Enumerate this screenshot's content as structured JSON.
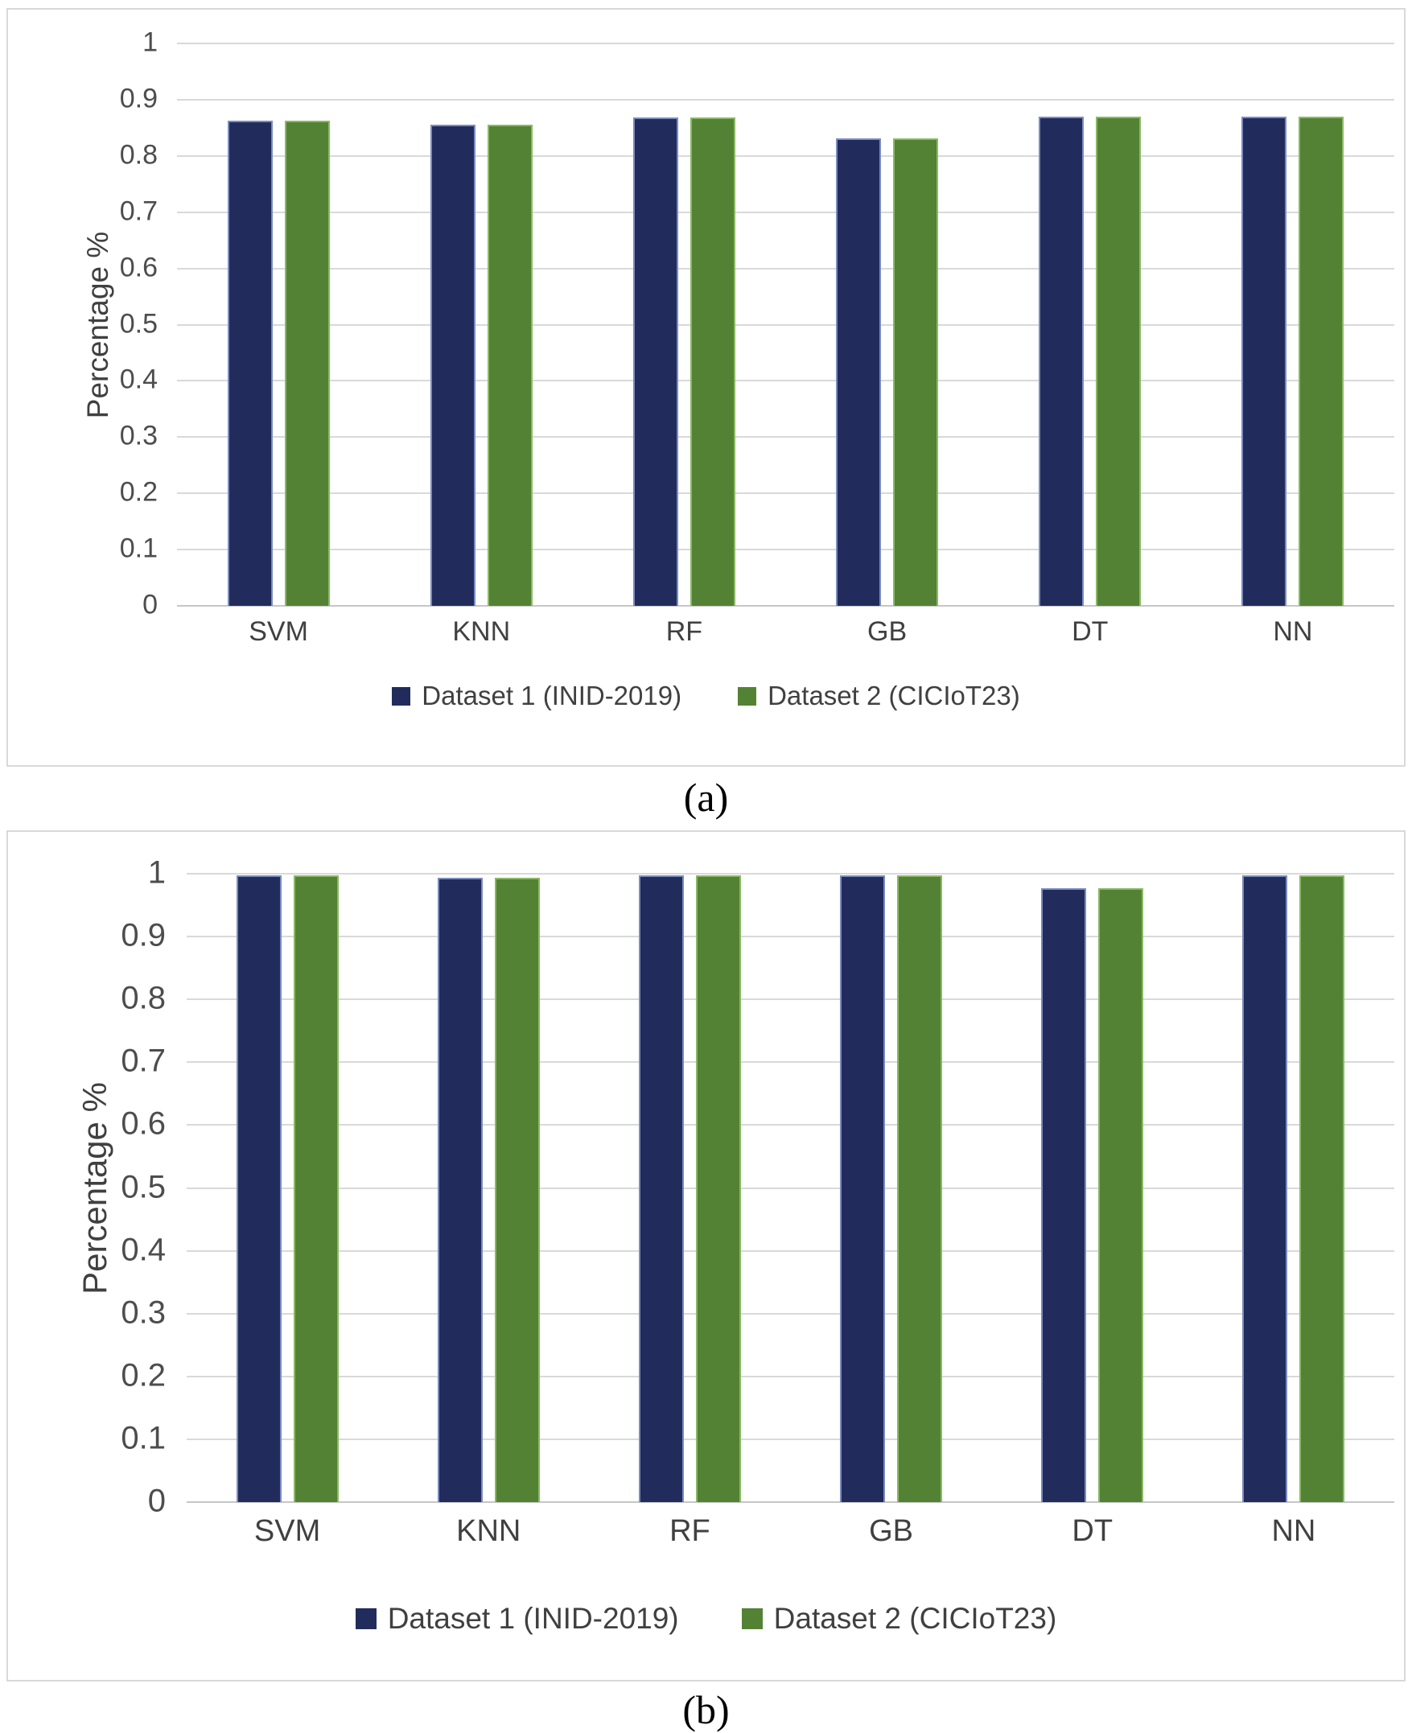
{
  "colors": {
    "grid": "#d9d9d9",
    "zero_axis": "#c6c6c6",
    "tick_text": "#4d4d4d",
    "panel_border": "#d9d9d9",
    "navy": "#222c5c",
    "green": "#548235"
  },
  "chart_data": [
    {
      "id": "a",
      "type": "bar",
      "caption": "(a)",
      "ylabel": "Percentage %",
      "ylim": [
        0,
        1
      ],
      "ytick_labels": [
        "0",
        "0.1",
        "0.2",
        "0.3",
        "0.4",
        "0.5",
        "0.6",
        "0.7",
        "0.8",
        "0.9",
        "1"
      ],
      "grid": true,
      "legend_position": "bottom",
      "categories": [
        "SVM",
        "KNN",
        "RF",
        "GB",
        "DT",
        "NN"
      ],
      "series": [
        {
          "name": "Dataset 1 (INID-2019)",
          "color": "#222c5c",
          "edge_color": "#7a8cc0",
          "values": [
            0.863,
            0.856,
            0.868,
            0.831,
            0.87,
            0.87
          ]
        },
        {
          "name": "Dataset 2 (CICIoT23)",
          "color": "#548235",
          "edge_color": "#8ab964",
          "values": [
            0.863,
            0.856,
            0.868,
            0.831,
            0.87,
            0.87
          ]
        }
      ]
    },
    {
      "id": "b",
      "type": "bar",
      "caption": "(b)",
      "ylabel": "Percentage %",
      "ylim": [
        0,
        1
      ],
      "ytick_labels": [
        "0",
        "0.1",
        "0.2",
        "0.3",
        "0.4",
        "0.5",
        "0.6",
        "0.7",
        "0.8",
        "0.9",
        "1"
      ],
      "grid": true,
      "legend_position": "bottom",
      "categories": [
        "SVM",
        "KNN",
        "RF",
        "GB",
        "DT",
        "NN"
      ],
      "series": [
        {
          "name": "Dataset 1 (INID-2019)",
          "color": "#222c5c",
          "edge_color": "#7a8cc0",
          "values": [
            0.997,
            0.993,
            0.997,
            0.997,
            0.977,
            0.997
          ]
        },
        {
          "name": "Dataset 2 (CICIoT23)",
          "color": "#548235",
          "edge_color": "#8ab964",
          "values": [
            0.997,
            0.993,
            0.997,
            0.997,
            0.977,
            0.997
          ]
        }
      ]
    }
  ]
}
